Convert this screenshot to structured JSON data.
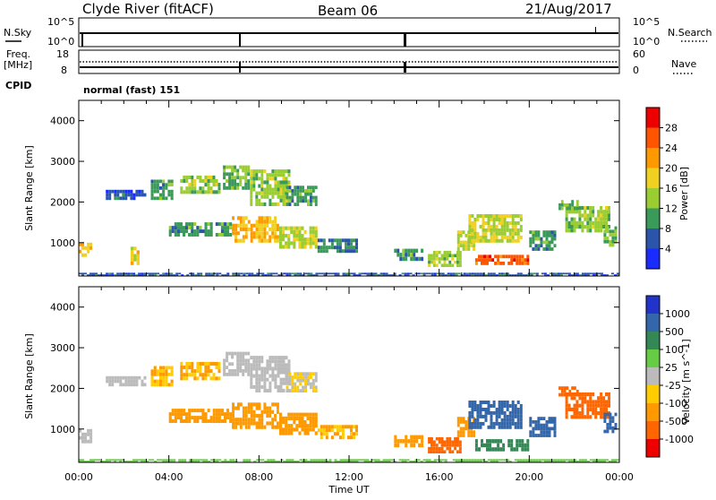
{
  "header": {
    "station": "Clyde River (fitACF)",
    "beam": "Beam 06",
    "date": "21/Aug/2017"
  },
  "top_panels": {
    "nsky_label": "N.Sky",
    "nsky_tick_top": "10^5",
    "nsky_tick_bottom": "10^0",
    "nsearch_label": "N.Search",
    "nsearch_tick_top": "10^5",
    "nsearch_tick_bottom": "10^0",
    "freq_label": "Freq.",
    "freq_unit": "[MHz]",
    "freq_tick_top": "18",
    "freq_tick_bottom": "8",
    "nave_label": "Nave",
    "nave_tick_top": "60",
    "nave_tick_bottom": "0",
    "cpid_label": "CPID",
    "cpid_value": "normal (fast) 151"
  },
  "colors": {
    "power_scale": [
      "#1a2bff",
      "#2b55aa",
      "#3a9a5a",
      "#9acd32",
      "#f0d020",
      "#ff9900",
      "#ff5500",
      "#ee0000"
    ],
    "velocity_scale": [
      "#2233cc",
      "#3366aa",
      "#338855",
      "#66cc44",
      "#bbbbbb",
      "#ffcc00",
      "#ff9900",
      "#ff6600",
      "#ee0000"
    ]
  },
  "chart_data": [
    {
      "type": "heatmap",
      "title": "Power",
      "ylabel": "Slant Range [km]",
      "xlabel": "",
      "ylim": [
        180,
        4500
      ],
      "yticks": [
        "1000",
        "2000",
        "3000",
        "4000"
      ],
      "colorbar_label": "Power [dB]",
      "colorbar_ticks": [
        "4",
        "8",
        "12",
        "16",
        "20",
        "24",
        "28"
      ],
      "clim": [
        0,
        32
      ],
      "regions": [
        {
          "t0": 0.0,
          "t1": 0.6,
          "r0": 650,
          "r1": 1000,
          "value": 20
        },
        {
          "t0": 1.2,
          "t1": 3.0,
          "r0": 2050,
          "r1": 2300,
          "value": 6
        },
        {
          "t0": 2.3,
          "t1": 2.7,
          "r0": 450,
          "r1": 900,
          "value": 18
        },
        {
          "t0": 3.2,
          "t1": 4.2,
          "r0": 2050,
          "r1": 2550,
          "value": 10
        },
        {
          "t0": 4.5,
          "t1": 6.3,
          "r0": 2200,
          "r1": 2650,
          "value": 14
        },
        {
          "t0": 6.4,
          "t1": 7.6,
          "r0": 2300,
          "r1": 2900,
          "value": 12
        },
        {
          "t0": 7.6,
          "t1": 9.4,
          "r0": 1900,
          "r1": 2800,
          "value": 14
        },
        {
          "t0": 9.2,
          "t1": 10.6,
          "r0": 1900,
          "r1": 2400,
          "value": 10
        },
        {
          "t0": 4.0,
          "t1": 6.8,
          "r0": 1150,
          "r1": 1500,
          "value": 10
        },
        {
          "t0": 6.8,
          "t1": 8.9,
          "r0": 1000,
          "r1": 1650,
          "value": 20
        },
        {
          "t0": 8.9,
          "t1": 10.6,
          "r0": 850,
          "r1": 1400,
          "value": 16
        },
        {
          "t0": 10.6,
          "t1": 12.4,
          "r0": 750,
          "r1": 1100,
          "value": 8
        },
        {
          "t0": 14.0,
          "t1": 15.3,
          "r0": 550,
          "r1": 850,
          "value": 10
        },
        {
          "t0": 15.5,
          "t1": 17.0,
          "r0": 400,
          "r1": 800,
          "value": 14
        },
        {
          "t0": 16.8,
          "t1": 17.6,
          "r0": 800,
          "r1": 1300,
          "value": 16
        },
        {
          "t0": 17.6,
          "t1": 20.0,
          "r0": 450,
          "r1": 700,
          "value": 26
        },
        {
          "t0": 17.3,
          "t1": 19.7,
          "r0": 1000,
          "r1": 1700,
          "value": 16
        },
        {
          "t0": 20.0,
          "t1": 21.2,
          "r0": 800,
          "r1": 1300,
          "value": 10
        },
        {
          "t0": 21.6,
          "t1": 23.6,
          "r0": 1250,
          "r1": 1900,
          "value": 14
        },
        {
          "t0": 21.3,
          "t1": 22.2,
          "r0": 1800,
          "r1": 2050,
          "value": 12
        },
        {
          "t0": 23.3,
          "t1": 23.9,
          "r0": 900,
          "r1": 1400,
          "value": 12
        },
        {
          "t0": 0.0,
          "t1": 24.0,
          "r0": 180,
          "r1": 260,
          "value": 6
        }
      ]
    },
    {
      "type": "heatmap",
      "title": "Velocity",
      "ylabel": "Slant Range [km]",
      "xlabel": "Time UT",
      "xlim": [
        "00:00",
        "00:00"
      ],
      "xticks": [
        "00:00",
        "04:00",
        "08:00",
        "12:00",
        "16:00",
        "20:00",
        "00:00"
      ],
      "ylim": [
        180,
        4500
      ],
      "yticks": [
        "1000",
        "2000",
        "3000",
        "4000"
      ],
      "colorbar_label": "Velocity [m s^-1]",
      "colorbar_ticks": [
        "1000",
        "500",
        "100",
        "25",
        "-25",
        "-100",
        "-500",
        "-1000"
      ],
      "regions": [
        {
          "t0": 0.0,
          "t1": 0.6,
          "r0": 650,
          "r1": 1000,
          "value": 0
        },
        {
          "t0": 1.2,
          "t1": 3.0,
          "r0": 2050,
          "r1": 2300,
          "value": 0
        },
        {
          "t0": 3.2,
          "t1": 4.2,
          "r0": 2050,
          "r1": 2550,
          "value": -100
        },
        {
          "t0": 4.5,
          "t1": 6.3,
          "r0": 2200,
          "r1": 2650,
          "value": -100
        },
        {
          "t0": 6.4,
          "t1": 7.6,
          "r0": 2300,
          "r1": 2900,
          "value": 0
        },
        {
          "t0": 7.6,
          "t1": 9.4,
          "r0": 1900,
          "r1": 2800,
          "value": 0
        },
        {
          "t0": 9.2,
          "t1": 10.6,
          "r0": 1900,
          "r1": 2400,
          "value": -25
        },
        {
          "t0": 4.0,
          "t1": 6.8,
          "r0": 1150,
          "r1": 1500,
          "value": -300
        },
        {
          "t0": 6.8,
          "t1": 8.9,
          "r0": 1000,
          "r1": 1650,
          "value": -300
        },
        {
          "t0": 8.9,
          "t1": 10.6,
          "r0": 850,
          "r1": 1400,
          "value": -300
        },
        {
          "t0": 10.6,
          "t1": 12.4,
          "r0": 750,
          "r1": 1100,
          "value": -100
        },
        {
          "t0": 14.0,
          "t1": 15.3,
          "r0": 550,
          "r1": 850,
          "value": -300
        },
        {
          "t0": 15.5,
          "t1": 17.0,
          "r0": 400,
          "r1": 800,
          "value": -600
        },
        {
          "t0": 16.8,
          "t1": 17.6,
          "r0": 800,
          "r1": 1300,
          "value": -300
        },
        {
          "t0": 17.6,
          "t1": 20.0,
          "r0": 450,
          "r1": 750,
          "value": 300
        },
        {
          "t0": 17.3,
          "t1": 19.7,
          "r0": 1000,
          "r1": 1700,
          "value": 700
        },
        {
          "t0": 20.0,
          "t1": 21.2,
          "r0": 800,
          "r1": 1300,
          "value": 800
        },
        {
          "t0": 21.6,
          "t1": 23.6,
          "r0": 1250,
          "r1": 1900,
          "value": -600
        },
        {
          "t0": 21.3,
          "t1": 22.2,
          "r0": 1800,
          "r1": 2050,
          "value": -700
        },
        {
          "t0": 23.3,
          "t1": 23.9,
          "r0": 900,
          "r1": 1400,
          "value": 600
        },
        {
          "t0": 0.0,
          "t1": 24.0,
          "r0": 180,
          "r1": 260,
          "value": 50
        }
      ]
    }
  ]
}
